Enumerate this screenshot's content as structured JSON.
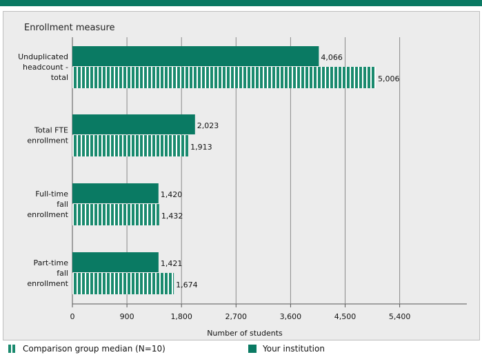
{
  "chart_data": {
    "type": "bar",
    "orientation": "horizontal",
    "title": "Enrollment measure",
    "xlabel": "Number of students",
    "categories": [
      [
        "Unduplicated",
        "headcount -",
        "total"
      ],
      [
        "Total FTE",
        "enrollment"
      ],
      [
        "Full-time",
        "fall",
        "enrollment"
      ],
      [
        "Part-time",
        "fall",
        "enrollment"
      ]
    ],
    "xticks": [
      0,
      900,
      1800,
      2700,
      3600,
      4500,
      5400
    ],
    "xlim": [
      0,
      6100
    ],
    "grid": true,
    "series": [
      {
        "name": "Your institution",
        "values": [
          4066,
          2023,
          1420,
          1421
        ],
        "labels": [
          "4,066",
          "2,023",
          "1,420",
          "1,421"
        ],
        "color": "#0a7a63",
        "pattern": "solid"
      },
      {
        "name": "Comparison group median (N=10)",
        "values": [
          5006,
          1913,
          1432,
          1674
        ],
        "labels": [
          "5,006",
          "1,913",
          "1,432",
          "1,674"
        ],
        "color": "#1a8a6e",
        "pattern": "striped"
      }
    ]
  },
  "legend": {
    "comparison_label": "Comparison group median (N=10)",
    "institution_label": "Your institution"
  }
}
